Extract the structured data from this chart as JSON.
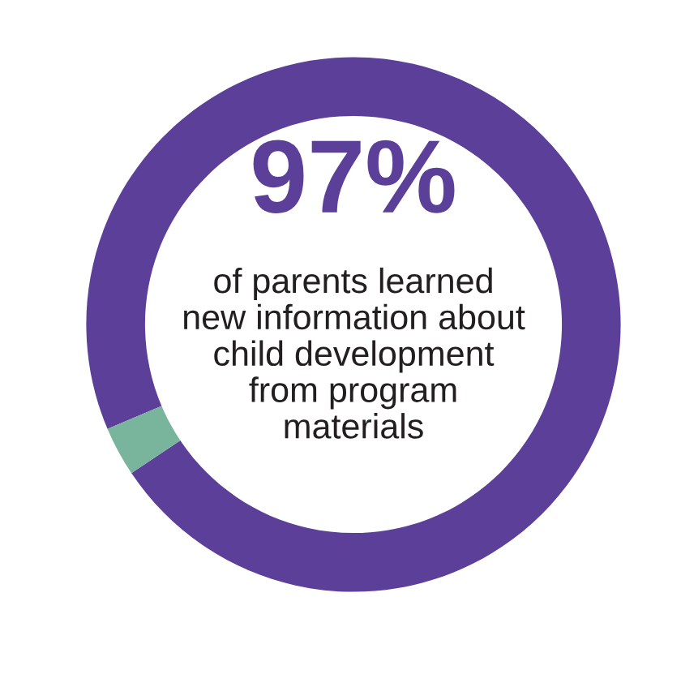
{
  "chart_data": {
    "type": "donut",
    "categories": [
      null,
      null
    ],
    "values": [
      97,
      3
    ],
    "colors": [
      "#5b3f99",
      "#78b59c"
    ],
    "annotations": [
      "97%",
      "of parents learned\nnew information about\nchild development\nfrom program\nmaterials"
    ]
  }
}
